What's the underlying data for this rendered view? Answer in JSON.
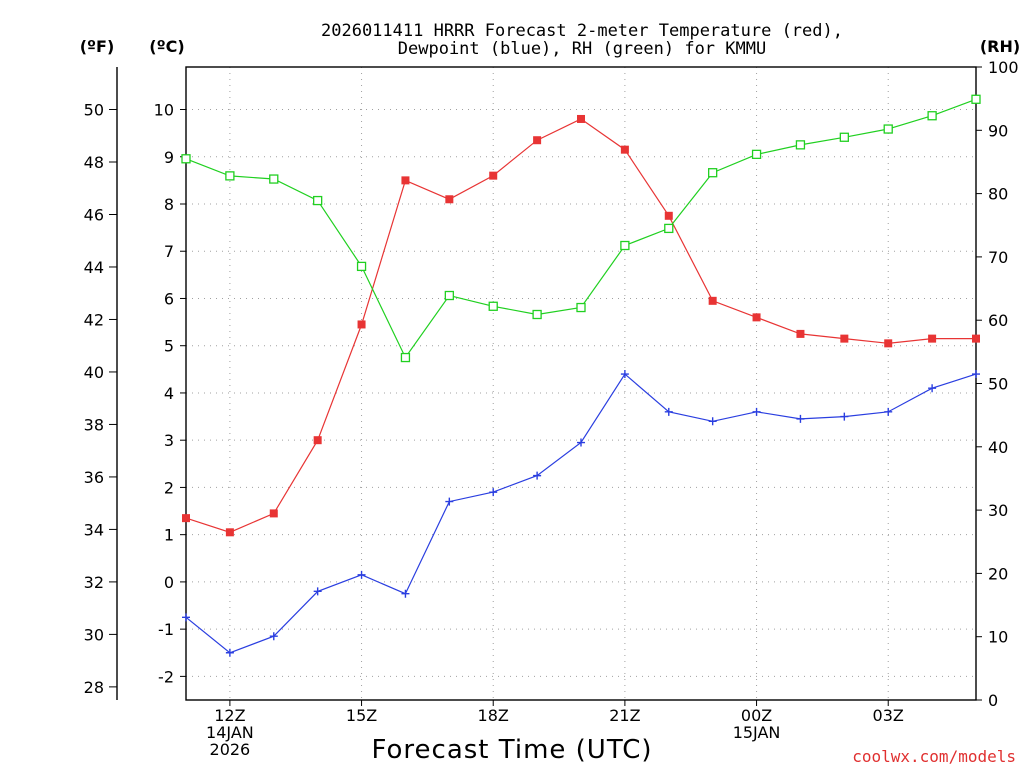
{
  "chart_data": {
    "type": "line",
    "title_lines": [
      "2026011411 HRRR Forecast 2-meter Temperature (red),",
      "Dewpoint (blue), RH (green) for KMMU"
    ],
    "xlabel": "Forecast Time (UTC)",
    "unit_labels": {
      "fahrenheit": "(ºF)",
      "celsius": "(ºC)",
      "rh": "(RH)"
    },
    "x_hours": [
      0,
      1,
      2,
      3,
      4,
      5,
      6,
      7,
      8,
      9,
      10,
      11,
      12,
      13,
      14,
      15,
      16,
      17,
      18
    ],
    "x_range": [
      0,
      18
    ],
    "x_ticks": [
      {
        "hour": 1,
        "lines": [
          "12Z",
          "14JAN",
          "2026"
        ]
      },
      {
        "hour": 4,
        "lines": [
          "15Z"
        ]
      },
      {
        "hour": 7,
        "lines": [
          "18Z"
        ]
      },
      {
        "hour": 10,
        "lines": [
          "21Z"
        ]
      },
      {
        "hour": 13,
        "lines": [
          "00Z",
          "15JAN"
        ]
      },
      {
        "hour": 16,
        "lines": [
          "03Z"
        ]
      }
    ],
    "celsius_range": [
      -2.5,
      10.9
    ],
    "celsius_ticks": [
      "-2",
      "-1",
      "0",
      "1",
      "2",
      "3",
      "4",
      "5",
      "6",
      "7",
      "8",
      "9",
      "10"
    ],
    "fahrenheit_ticks": [
      "28",
      "30",
      "32",
      "34",
      "36",
      "38",
      "40",
      "42",
      "44",
      "46",
      "48",
      "50"
    ],
    "rh_range": [
      0,
      100
    ],
    "rh_ticks": [
      "0",
      "10",
      "20",
      "30",
      "40",
      "50",
      "60",
      "70",
      "80",
      "90",
      "100"
    ],
    "series": [
      {
        "name": "2-meter Temperature",
        "axis": "celsius",
        "color": "#e83434",
        "marker": "filled-square",
        "values": [
          1.35,
          1.05,
          1.45,
          3.0,
          5.45,
          8.5,
          8.1,
          8.6,
          9.35,
          9.8,
          9.15,
          7.75,
          5.95,
          5.6,
          5.25,
          5.15,
          5.05,
          5.15,
          5.15
        ]
      },
      {
        "name": "Dewpoint",
        "axis": "celsius",
        "color": "#2a3ee0",
        "marker": "plus",
        "values": [
          -0.75,
          -1.5,
          -1.15,
          -0.2,
          0.15,
          -0.25,
          1.7,
          1.9,
          2.25,
          2.95,
          4.4,
          3.6,
          3.4,
          3.6,
          3.45,
          3.5,
          3.6,
          4.1,
          4.4
        ]
      },
      {
        "name": "RH",
        "axis": "rh",
        "color": "#20d020",
        "marker": "open-square",
        "values": [
          85.5,
          82.8,
          82.3,
          78.9,
          68.5,
          54.1,
          63.9,
          62.2,
          60.9,
          62.0,
          71.8,
          74.5,
          83.3,
          86.2,
          87.7,
          88.9,
          90.2,
          92.3,
          94.9
        ]
      }
    ]
  },
  "credit": "coolwx.com/models"
}
